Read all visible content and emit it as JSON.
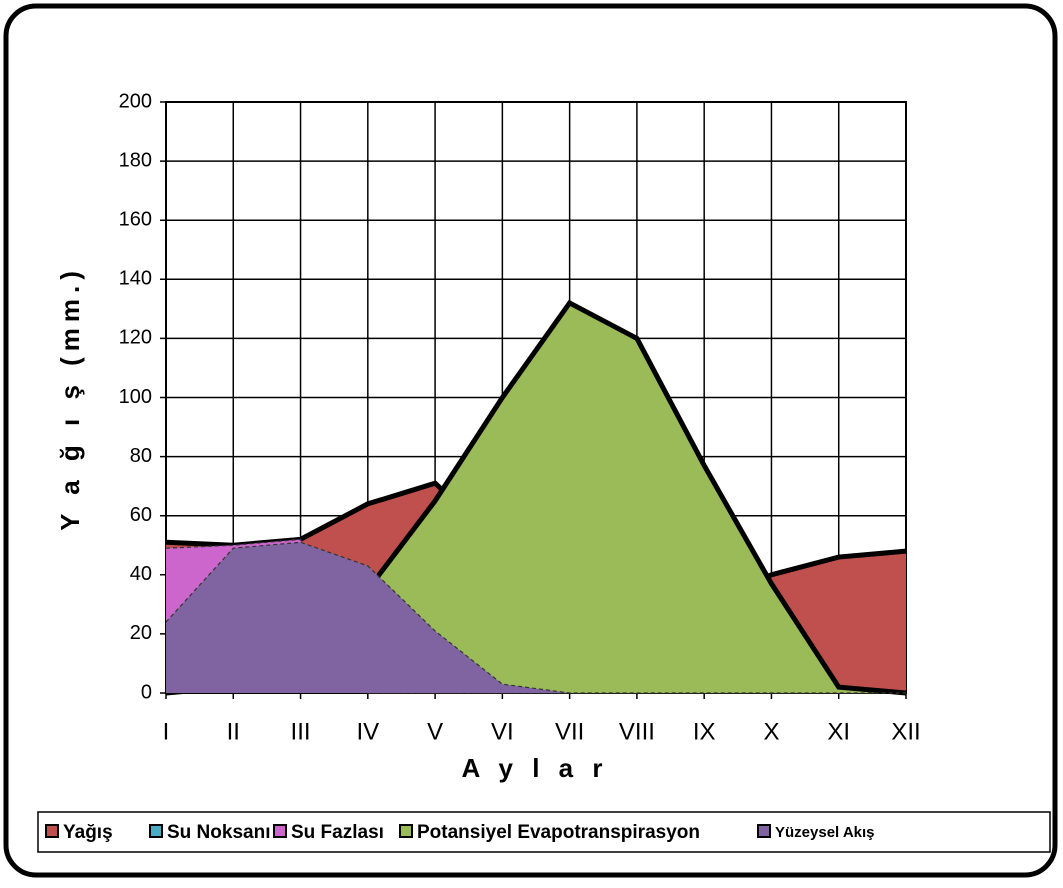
{
  "chart_data": {
    "type": "area",
    "x_label": "A y l a r",
    "y_label": "Y a ğ ı ş (mm.)",
    "categories": [
      "I",
      "II",
      "III",
      "IV",
      "V",
      "VI",
      "VII",
      "VIII",
      "IX",
      "X",
      "XI",
      "XII"
    ],
    "series": [
      {
        "name": "Yağış",
        "color": "#c0504d",
        "values": [
          51,
          50,
          52,
          64,
          71,
          50,
          25,
          20,
          30,
          40,
          46,
          48
        ]
      },
      {
        "name": "Su Noksanı",
        "color": "#4bacc6",
        "values": [
          48,
          50,
          51,
          0,
          0,
          0,
          0,
          0,
          0,
          0,
          0,
          0
        ]
      },
      {
        "name": "Su Fazlası",
        "color": "#cc66cc",
        "values": [
          49,
          50,
          52,
          0,
          0,
          0,
          0,
          0,
          0,
          0,
          0,
          0
        ]
      },
      {
        "name": "Potansiyel Evapotranspirasyon",
        "color": "#9bbb59",
        "values": [
          0,
          2,
          14,
          35,
          65,
          100,
          132,
          120,
          77,
          37,
          2,
          0
        ]
      },
      {
        "name": "Yüzeysel Akış",
        "color": "#8064a2",
        "values": [
          24,
          49,
          51,
          43,
          21,
          3,
          0,
          0,
          0,
          0,
          0,
          0
        ]
      }
    ],
    "ylim": [
      0,
      200
    ],
    "yticks": [
      0,
      20,
      40,
      60,
      80,
      100,
      120,
      140,
      160,
      180,
      200
    ],
    "grid": true
  }
}
